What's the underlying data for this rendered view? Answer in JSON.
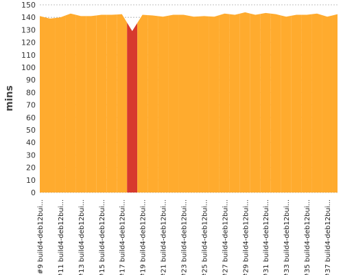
{
  "chart_data": {
    "type": "area",
    "y_label": "mins",
    "categories": [
      "#9 build4-deb12bui...",
      null,
      "#11 build4-deb12bui...",
      null,
      "#13 build4-deb12bui...",
      null,
      "#15 build4-deb12bui...",
      null,
      "#17 build4-deb12bui...",
      null,
      "#19 build4-deb12bui...",
      null,
      "#21 build4-deb12bui...",
      null,
      "#23 build4-deb12bui...",
      null,
      "#25 build4-deb12bui...",
      null,
      "#27 build4-deb12bui...",
      null,
      "#29 build4-deb12bui...",
      null,
      "#31 build4-deb12bui...",
      null,
      "#33 build4-deb12bui...",
      null,
      "#35 build4-deb12bui...",
      null,
      "#37 build4-deb12bui...",
      null
    ],
    "values": [
      141,
      139,
      140,
      143,
      141,
      141,
      142,
      142,
      142.5,
      129,
      142,
      141.5,
      140.5,
      142,
      142,
      140.5,
      141,
      140.5,
      143,
      142,
      144,
      142,
      143.5,
      142.5,
      140.5,
      142,
      142,
      143,
      140.5,
      142.5
    ],
    "point_colors": [
      "#ffab2e",
      "#ffab2e",
      "#ffab2e",
      "#ffab2e",
      "#ffab2e",
      "#ffab2e",
      "#ffab2e",
      "#ffab2e",
      "#ffab2e",
      "#d73a2e",
      "#ffab2e",
      "#ffab2e",
      "#ffab2e",
      "#ffab2e",
      "#ffab2e",
      "#ffab2e",
      "#ffab2e",
      "#ffab2e",
      "#ffab2e",
      "#ffab2e",
      "#ffab2e",
      "#ffab2e",
      "#ffab2e",
      "#ffab2e",
      "#ffab2e",
      "#ffab2e",
      "#ffab2e",
      "#ffab2e",
      "#ffab2e",
      "#ffab2e"
    ],
    "ylim": [
      0,
      150
    ],
    "yticks": [
      0,
      10,
      20,
      30,
      40,
      50,
      60,
      70,
      80,
      90,
      100,
      110,
      120,
      130,
      140,
      150
    ],
    "grid": true
  }
}
